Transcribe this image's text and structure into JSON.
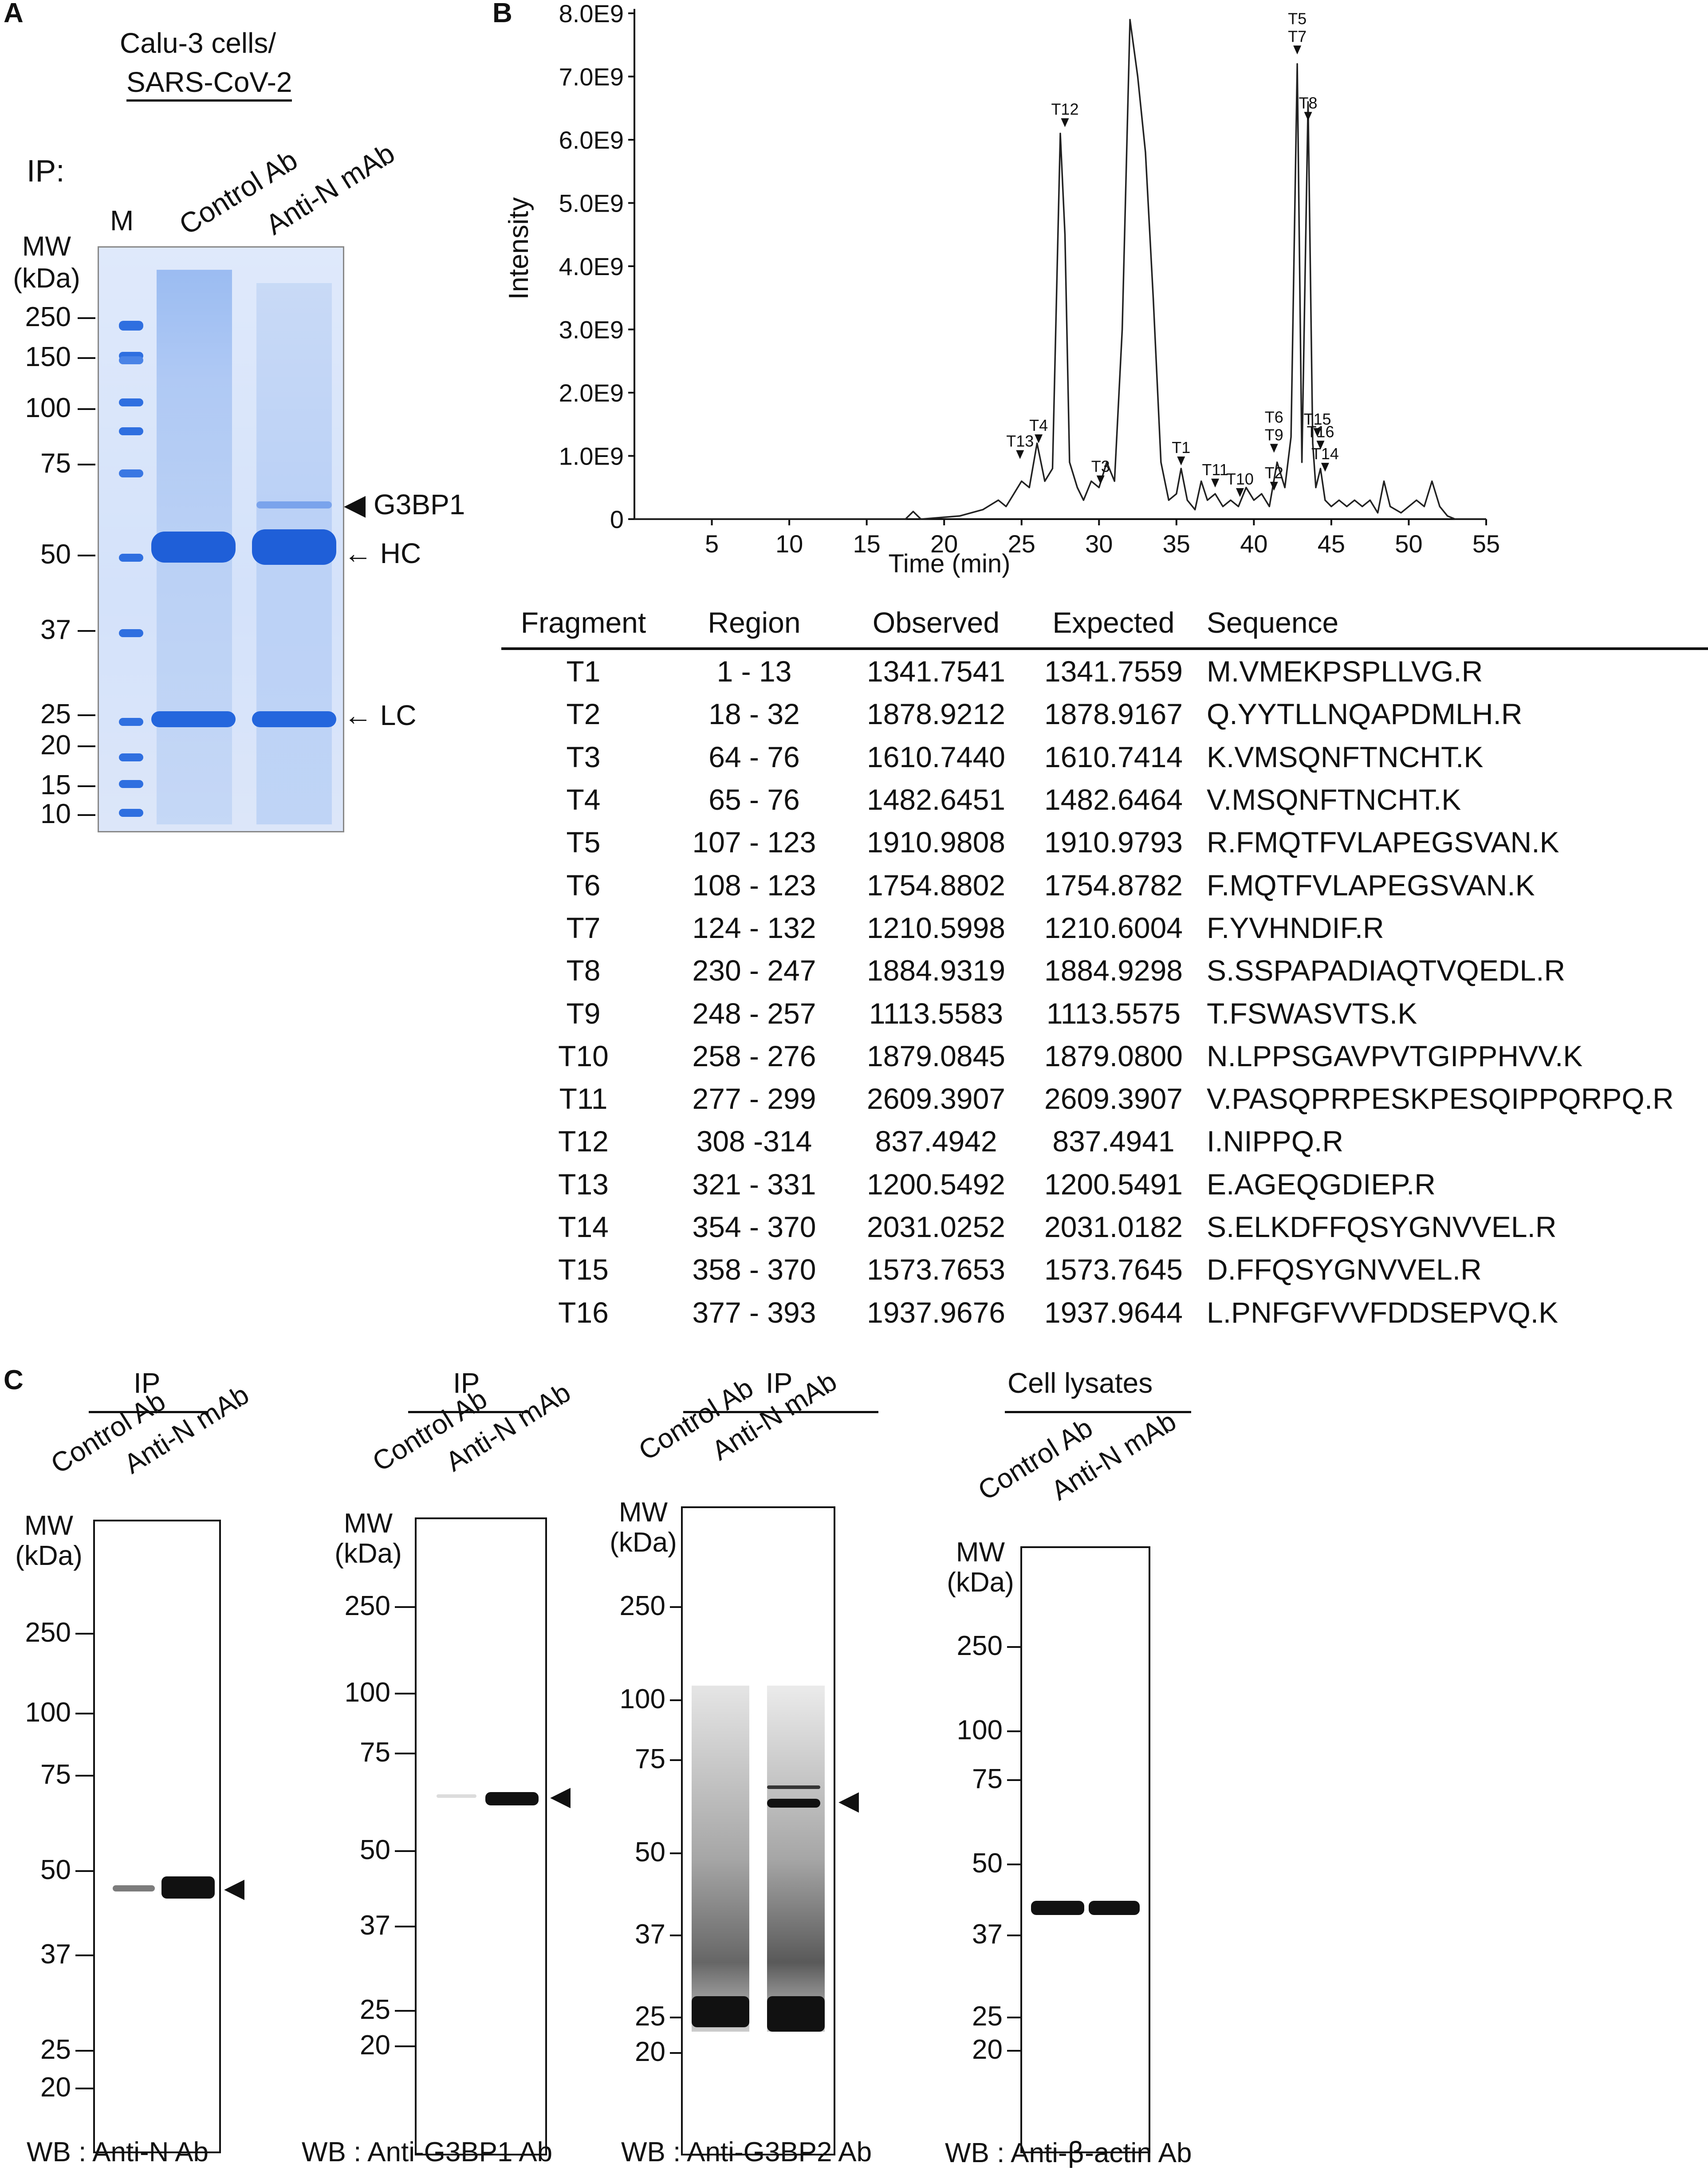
{
  "panel_a": {
    "letter": "A",
    "header_line1": "Calu-3 cells/",
    "header_line2": "SARS-CoV-2",
    "ip_label": "IP:",
    "lane_m": "M",
    "lane_control": "Control Ab",
    "lane_anti_n": "Anti-N mAb",
    "mw_title1": "MW",
    "mw_title2": "(kDa)",
    "mw_markers": [
      "250",
      "150",
      "100",
      "75",
      "50",
      "37",
      "25",
      "20",
      "15",
      "10"
    ],
    "annotations": [
      "G3BP1",
      "HC",
      "LC"
    ],
    "gel_color": "#5b8fe8"
  },
  "panel_b": {
    "letter": "B",
    "chart_data": {
      "type": "line",
      "xlabel": "Time (min)",
      "ylabel": "Intensity",
      "xlim": [
        0,
        55
      ],
      "ylim": [
        0,
        8000000000.0
      ],
      "x_ticks": [
        "5",
        "10",
        "15",
        "20",
        "25",
        "30",
        "35",
        "40",
        "45",
        "50",
        "55"
      ],
      "y_ticks": [
        "0",
        "1.0E9",
        "2.0E9",
        "3.0E9",
        "4.0E9",
        "5.0E9",
        "6.0E9",
        "7.0E9",
        "8.0E9"
      ],
      "series": [
        {
          "x": [
            0,
            17.5,
            18,
            18.5,
            21,
            22.5,
            23.5,
            24,
            24.5,
            25,
            25.5,
            26,
            26.5,
            27,
            27.5,
            27.8,
            28.1,
            28.6,
            29,
            29.5,
            30,
            30.5,
            31,
            31.5,
            32,
            32.5,
            33,
            33.5,
            34,
            34.5,
            35,
            35.3,
            35.7,
            36.2,
            36.6,
            37,
            37.5,
            38,
            38.5,
            39,
            39.5,
            40,
            40.5,
            41,
            41.5,
            42,
            42.4,
            42.8,
            43.1,
            43.5,
            43.8,
            44,
            44.3,
            44.6,
            45,
            45.5,
            46,
            46.5,
            47,
            47.5,
            48,
            48.4,
            48.8,
            49.5,
            50,
            50.5,
            51,
            51.5,
            52,
            52.5,
            53,
            55
          ],
          "y": [
            0,
            0,
            120000000.0,
            0,
            50000000.0,
            150000000.0,
            300000000.0,
            200000000.0,
            400000000.0,
            600000000.0,
            500000000.0,
            1200000000.0,
            600000000.0,
            800000000.0,
            6100000000.0,
            4500000000.0,
            900000000.0,
            500000000.0,
            300000000.0,
            600000000.0,
            500000000.0,
            900000000.0,
            600000000.0,
            3000000000.0,
            7900000000.0,
            7000000000.0,
            5800000000.0,
            3500000000.0,
            900000000.0,
            300000000.0,
            400000000.0,
            800000000.0,
            300000000.0,
            150000000.0,
            600000000.0,
            300000000.0,
            400000000.0,
            200000000.0,
            300000000.0,
            200000000.0,
            500000000.0,
            300000000.0,
            400000000.0,
            200000000.0,
            900000000.0,
            500000000.0,
            1300000000.0,
            7200000000.0,
            900000000.0,
            6600000000.0,
            1200000000.0,
            500000000.0,
            800000000.0,
            300000000.0,
            200000000.0,
            300000000.0,
            200000000.0,
            300000000.0,
            200000000.0,
            300000000.0,
            100000000.0,
            600000000.0,
            200000000.0,
            100000000.0,
            200000000.0,
            300000000.0,
            200000000.0,
            600000000.0,
            200000000.0,
            50000000.0,
            0,
            0
          ]
        }
      ],
      "annotations": [
        {
          "label": "T12",
          "x": 27.8,
          "y": 6200000000.0
        },
        {
          "label": "T13",
          "x": 24.9,
          "y": 950000000.0
        },
        {
          "label": "T4",
          "x": 26.1,
          "y": 1200000000.0
        },
        {
          "label": "T3",
          "x": 30.1,
          "y": 550000000.0
        },
        {
          "label": "T1",
          "x": 35.3,
          "y": 850000000.0
        },
        {
          "label": "T11",
          "x": 37.5,
          "y": 500000000.0
        },
        {
          "label": "T10",
          "x": 39.1,
          "y": 350000000.0
        },
        {
          "label": "T2",
          "x": 41.3,
          "y": 450000000.0
        },
        {
          "label": "T6\nT9",
          "x": 41.3,
          "y": 1050000000.0
        },
        {
          "label": "T5\nT7",
          "x": 42.8,
          "y": 7350000000.0
        },
        {
          "label": "T8",
          "x": 43.5,
          "y": 6300000000.0
        },
        {
          "label": "T15",
          "x": 44.1,
          "y": 1300000000.0
        },
        {
          "label": "T16",
          "x": 44.3,
          "y": 1100000000.0
        },
        {
          "label": "T14",
          "x": 44.6,
          "y": 750000000.0
        }
      ]
    },
    "table": {
      "headers": [
        "Fragment",
        "Region",
        "Observed",
        "Expected",
        "Sequence"
      ],
      "rows": [
        [
          "T1",
          "1 - 13",
          "1341.7541",
          "1341.7559",
          "M.VMEKPSPLLVG.R"
        ],
        [
          "T2",
          "18 - 32",
          "1878.9212",
          "1878.9167",
          "Q.YYTLLNQAPDMLH.R"
        ],
        [
          "T3",
          "64 - 76",
          "1610.7440",
          "1610.7414",
          "K.VMSQNFTNCHT.K"
        ],
        [
          "T4",
          "65 - 76",
          "1482.6451",
          "1482.6464",
          "V.MSQNFTNCHT.K"
        ],
        [
          "T5",
          "107 - 123",
          "1910.9808",
          "1910.9793",
          "R.FMQTFVLAPEGSVAN.K"
        ],
        [
          "T6",
          "108 - 123",
          "1754.8802",
          "1754.8782",
          "F.MQTFVLAPEGSVAN.K"
        ],
        [
          "T7",
          "124 - 132",
          "1210.5998",
          "1210.6004",
          "F.YVHNDIF.R"
        ],
        [
          "T8",
          "230 - 247",
          "1884.9319",
          "1884.9298",
          "S.SSPAPADIAQTVQEDL.R"
        ],
        [
          "T9",
          "248 - 257",
          "1113.5583",
          "1113.5575",
          "T.FSWASVTS.K"
        ],
        [
          "T10",
          "258 - 276",
          "1879.0845",
          "1879.0800",
          "N.LPPSGAVPVTGIPPHVV.K"
        ],
        [
          "T11",
          "277 - 299",
          "2609.3907",
          "2609.3907",
          "V.PASQPRPESKPESQIPPQRPQ.R"
        ],
        [
          "T12",
          "308 -314",
          "837.4942",
          "837.4941",
          "I.NIPPQ.R"
        ],
        [
          "T13",
          "321 - 331",
          "1200.5492",
          "1200.5491",
          "E.AGEQGDIEP.R"
        ],
        [
          "T14",
          "354 - 370",
          "2031.0252",
          "2031.0182",
          "S.ELKDFFQSYGNVVEL.R"
        ],
        [
          "T15",
          "358 - 370",
          "1573.7653",
          "1573.7645",
          "D.FFQSYGNVVEL.R"
        ],
        [
          "T16",
          "377 - 393",
          "1937.9676",
          "1937.9644",
          "L.PNFGFVVFDDSEPVQ.K"
        ]
      ]
    }
  },
  "panel_c": {
    "letter": "C",
    "lane_control": "Control Ab",
    "lane_anti_n": "Anti-N mAb",
    "mw_title1": "MW",
    "mw_title2": "(kDa)",
    "blots": [
      {
        "header": "IP",
        "wb": "WB : Anti-N Ab",
        "markers": [
          "250",
          "100",
          "75",
          "50",
          "37",
          "25",
          "20"
        ]
      },
      {
        "header": "IP",
        "wb": "WB : Anti-G3BP1 Ab",
        "markers": [
          "250",
          "100",
          "75",
          "50",
          "37",
          "25",
          "20"
        ]
      },
      {
        "header": "IP",
        "wb": "WB : Anti-G3BP2 Ab",
        "markers": [
          "250",
          "100",
          "75",
          "50",
          "37",
          "25",
          "20"
        ]
      },
      {
        "header": "Cell lysates",
        "wb_prefix": "WB : Anti-",
        "wb_greek": "β",
        "wb_suffix": "-actin Ab",
        "markers": [
          "250",
          "100",
          "75",
          "50",
          "37",
          "25",
          "20"
        ]
      }
    ]
  }
}
